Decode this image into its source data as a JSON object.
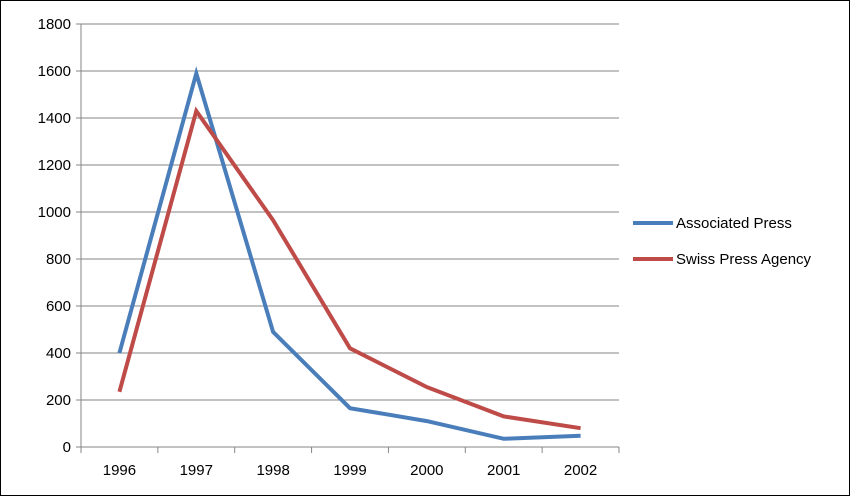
{
  "chart_data": {
    "type": "line",
    "title": "",
    "xlabel": "",
    "ylabel": "",
    "categories": [
      "1996",
      "1997",
      "1998",
      "1999",
      "2000",
      "2001",
      "2002"
    ],
    "series": [
      {
        "name": "Associated Press",
        "color": "#4a7ebb",
        "values": [
          400,
          1590,
          490,
          165,
          110,
          35,
          48
        ]
      },
      {
        "name": "Swiss Press Agency",
        "color": "#be4b48",
        "values": [
          235,
          1430,
          965,
          420,
          255,
          130,
          80
        ]
      }
    ],
    "ylim": [
      0,
      1800
    ],
    "y_ticks": [
      "0",
      "200",
      "400",
      "600",
      "800",
      "1000",
      "1200",
      "1400",
      "1600",
      "1800"
    ],
    "grid": "horizontal",
    "legend_position": "right"
  }
}
